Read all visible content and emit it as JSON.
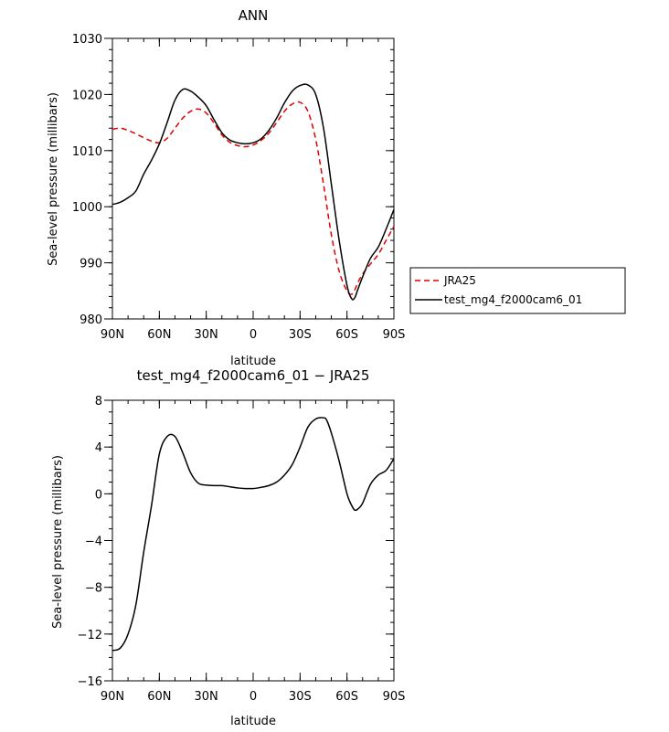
{
  "colors": {
    "jra25": "#e00000",
    "test": "#000000"
  },
  "chart_data": [
    {
      "type": "line",
      "title": "ANN",
      "xlabel": "latitude",
      "ylabel": "Sea-level pressure (millibars)",
      "xlim": [
        90,
        -90
      ],
      "ylim": [
        980,
        1030
      ],
      "x_ticks": [
        90,
        60,
        30,
        0,
        -30,
        -60,
        -90
      ],
      "x_tick_labels": [
        "90N",
        "60N",
        "30N",
        "0",
        "30S",
        "60S",
        "90S"
      ],
      "y_ticks": [
        980,
        990,
        1000,
        1010,
        1020,
        1030
      ],
      "y_tick_labels": [
        "980",
        "990",
        "1000",
        "1010",
        "1020",
        "1030"
      ],
      "legend": {
        "placement": "right",
        "entries": [
          "JRA25",
          "test_mg4_f2000cam6_01"
        ]
      },
      "series": [
        {
          "name": "JRA25",
          "color": "#e00000",
          "dash": "dashed",
          "x": [
            90,
            85,
            80,
            75,
            70,
            65,
            60,
            55,
            50,
            45,
            40,
            35,
            30,
            25,
            20,
            15,
            10,
            5,
            0,
            -5,
            -10,
            -15,
            -20,
            -25,
            -30,
            -35,
            -40,
            -45,
            -50,
            -55,
            -60,
            -63,
            -65,
            -67,
            -70,
            -75,
            -80,
            -85,
            -90
          ],
          "y": [
            1013.8,
            1014.0,
            1013.6,
            1013.0,
            1012.3,
            1011.7,
            1011.4,
            1012.2,
            1014.0,
            1015.8,
            1017.0,
            1017.4,
            1016.7,
            1014.9,
            1012.8,
            1011.5,
            1010.9,
            1010.7,
            1011.0,
            1011.8,
            1013.1,
            1015.0,
            1017.0,
            1018.3,
            1018.6,
            1017.0,
            1012.0,
            1004.0,
            995.0,
            988.5,
            985.0,
            984.4,
            985.2,
            986.5,
            988.0,
            989.8,
            991.5,
            994.0,
            996.5
          ]
        },
        {
          "name": "test_mg4_f2000cam6_01",
          "color": "#000000",
          "dash": "solid",
          "x": [
            90,
            85,
            80,
            75,
            70,
            65,
            60,
            55,
            50,
            45,
            40,
            35,
            30,
            25,
            20,
            15,
            10,
            5,
            0,
            -5,
            -10,
            -15,
            -20,
            -25,
            -30,
            -35,
            -40,
            -45,
            -50,
            -55,
            -60,
            -63,
            -65,
            -67,
            -70,
            -75,
            -80,
            -85,
            -90
          ],
          "y": [
            1000.4,
            1000.8,
            1001.6,
            1002.8,
            1005.8,
            1008.3,
            1011.2,
            1015.0,
            1019.0,
            1020.9,
            1020.6,
            1019.5,
            1018.0,
            1015.5,
            1013.2,
            1011.9,
            1011.4,
            1011.2,
            1011.4,
            1012.1,
            1013.6,
            1015.8,
            1018.5,
            1020.6,
            1021.6,
            1021.7,
            1020.0,
            1014.0,
            1004.0,
            994.0,
            986.0,
            983.6,
            983.8,
            985.3,
            987.5,
            990.8,
            992.8,
            996.0,
            999.5
          ]
        }
      ]
    },
    {
      "type": "line",
      "title": "test_mg4_f2000cam6_01 − JRA25",
      "xlabel": "latitude",
      "ylabel": "Sea-level pressure (millibars)",
      "xlim": [
        90,
        -90
      ],
      "ylim": [
        -16,
        8
      ],
      "x_ticks": [
        90,
        60,
        30,
        0,
        -30,
        -60,
        -90
      ],
      "x_tick_labels": [
        "90N",
        "60N",
        "30N",
        "0",
        "30S",
        "60S",
        "90S"
      ],
      "y_ticks": [
        -16,
        -12,
        -8,
        -4,
        0,
        4,
        8
      ],
      "y_tick_labels": [
        "−16",
        "−12",
        "−8",
        "−4",
        "0",
        "4",
        "8"
      ],
      "series": [
        {
          "color": "#000000",
          "dash": "solid",
          "x": [
            90,
            85,
            80,
            75,
            70,
            65,
            60,
            55,
            50,
            45,
            40,
            35,
            30,
            25,
            20,
            15,
            10,
            5,
            0,
            -5,
            -10,
            -15,
            -20,
            -25,
            -30,
            -35,
            -40,
            -45,
            -47,
            -50,
            -55,
            -60,
            -63,
            -65,
            -67,
            -70,
            -75,
            -80,
            -85,
            -90
          ],
          "y": [
            -13.4,
            -13.2,
            -12.0,
            -9.5,
            -5.0,
            -1.0,
            3.4,
            4.9,
            4.9,
            3.5,
            1.8,
            0.9,
            0.75,
            0.7,
            0.7,
            0.6,
            0.5,
            0.45,
            0.45,
            0.55,
            0.7,
            1.0,
            1.6,
            2.5,
            4.0,
            5.7,
            6.4,
            6.5,
            6.3,
            5.2,
            2.8,
            0.0,
            -1.0,
            -1.4,
            -1.3,
            -0.8,
            0.8,
            1.6,
            2.0,
            3.0
          ]
        }
      ]
    }
  ]
}
